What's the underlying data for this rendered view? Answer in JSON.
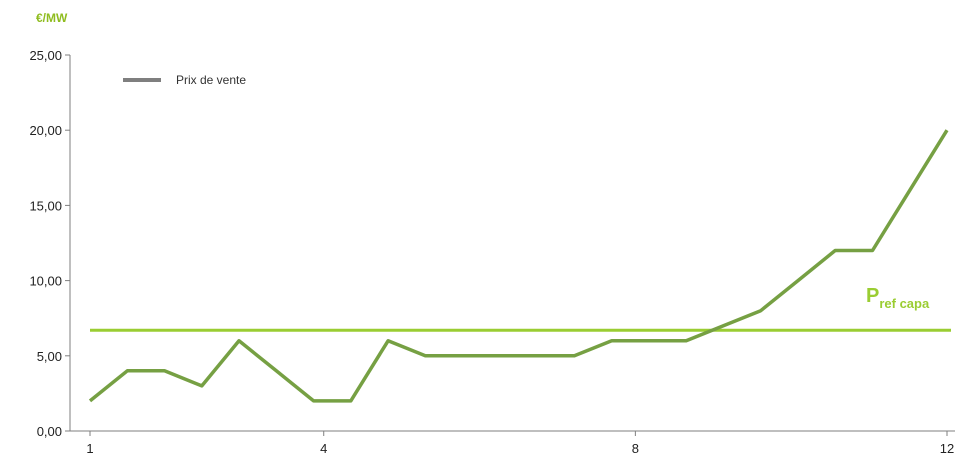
{
  "chart_data": {
    "type": "line",
    "ylabel": "€/MW",
    "ylim": [
      0,
      25
    ],
    "yticks": [
      "0,00",
      "5,00",
      "10,00",
      "15,00",
      "20,00",
      "25,00"
    ],
    "xlim": [
      1,
      12.5
    ],
    "xticks": [
      1,
      4,
      8,
      12
    ],
    "xtick_labels": [
      "1",
      "4",
      "8",
      "12"
    ],
    "grid": false,
    "legend_position": "top-left",
    "series": [
      {
        "name": "Prix de vente",
        "x": [
          1,
          1.5,
          2,
          2.5,
          3,
          3.5,
          4,
          4.5,
          5,
          5.5,
          6,
          6.5,
          7,
          7.5,
          8,
          8.5,
          9,
          9.5,
          10,
          10.5,
          11,
          11.5,
          12,
          12.5
        ],
        "y": [
          2,
          4,
          4,
          3,
          6,
          4,
          2,
          2,
          6,
          5,
          5,
          5,
          5,
          5,
          6,
          6,
          6,
          7,
          8,
          10,
          12,
          12,
          16,
          20
        ],
        "color": "#76a043"
      }
    ],
    "reference_line": {
      "label_main": "P",
      "label_sub": "ref capa",
      "value": 6.7,
      "color": "#9acd32"
    },
    "colors": {
      "axis": "#7f7f7f",
      "unit_label": "#8fbc1f",
      "legend_swatch": "#7f7f7f"
    }
  }
}
